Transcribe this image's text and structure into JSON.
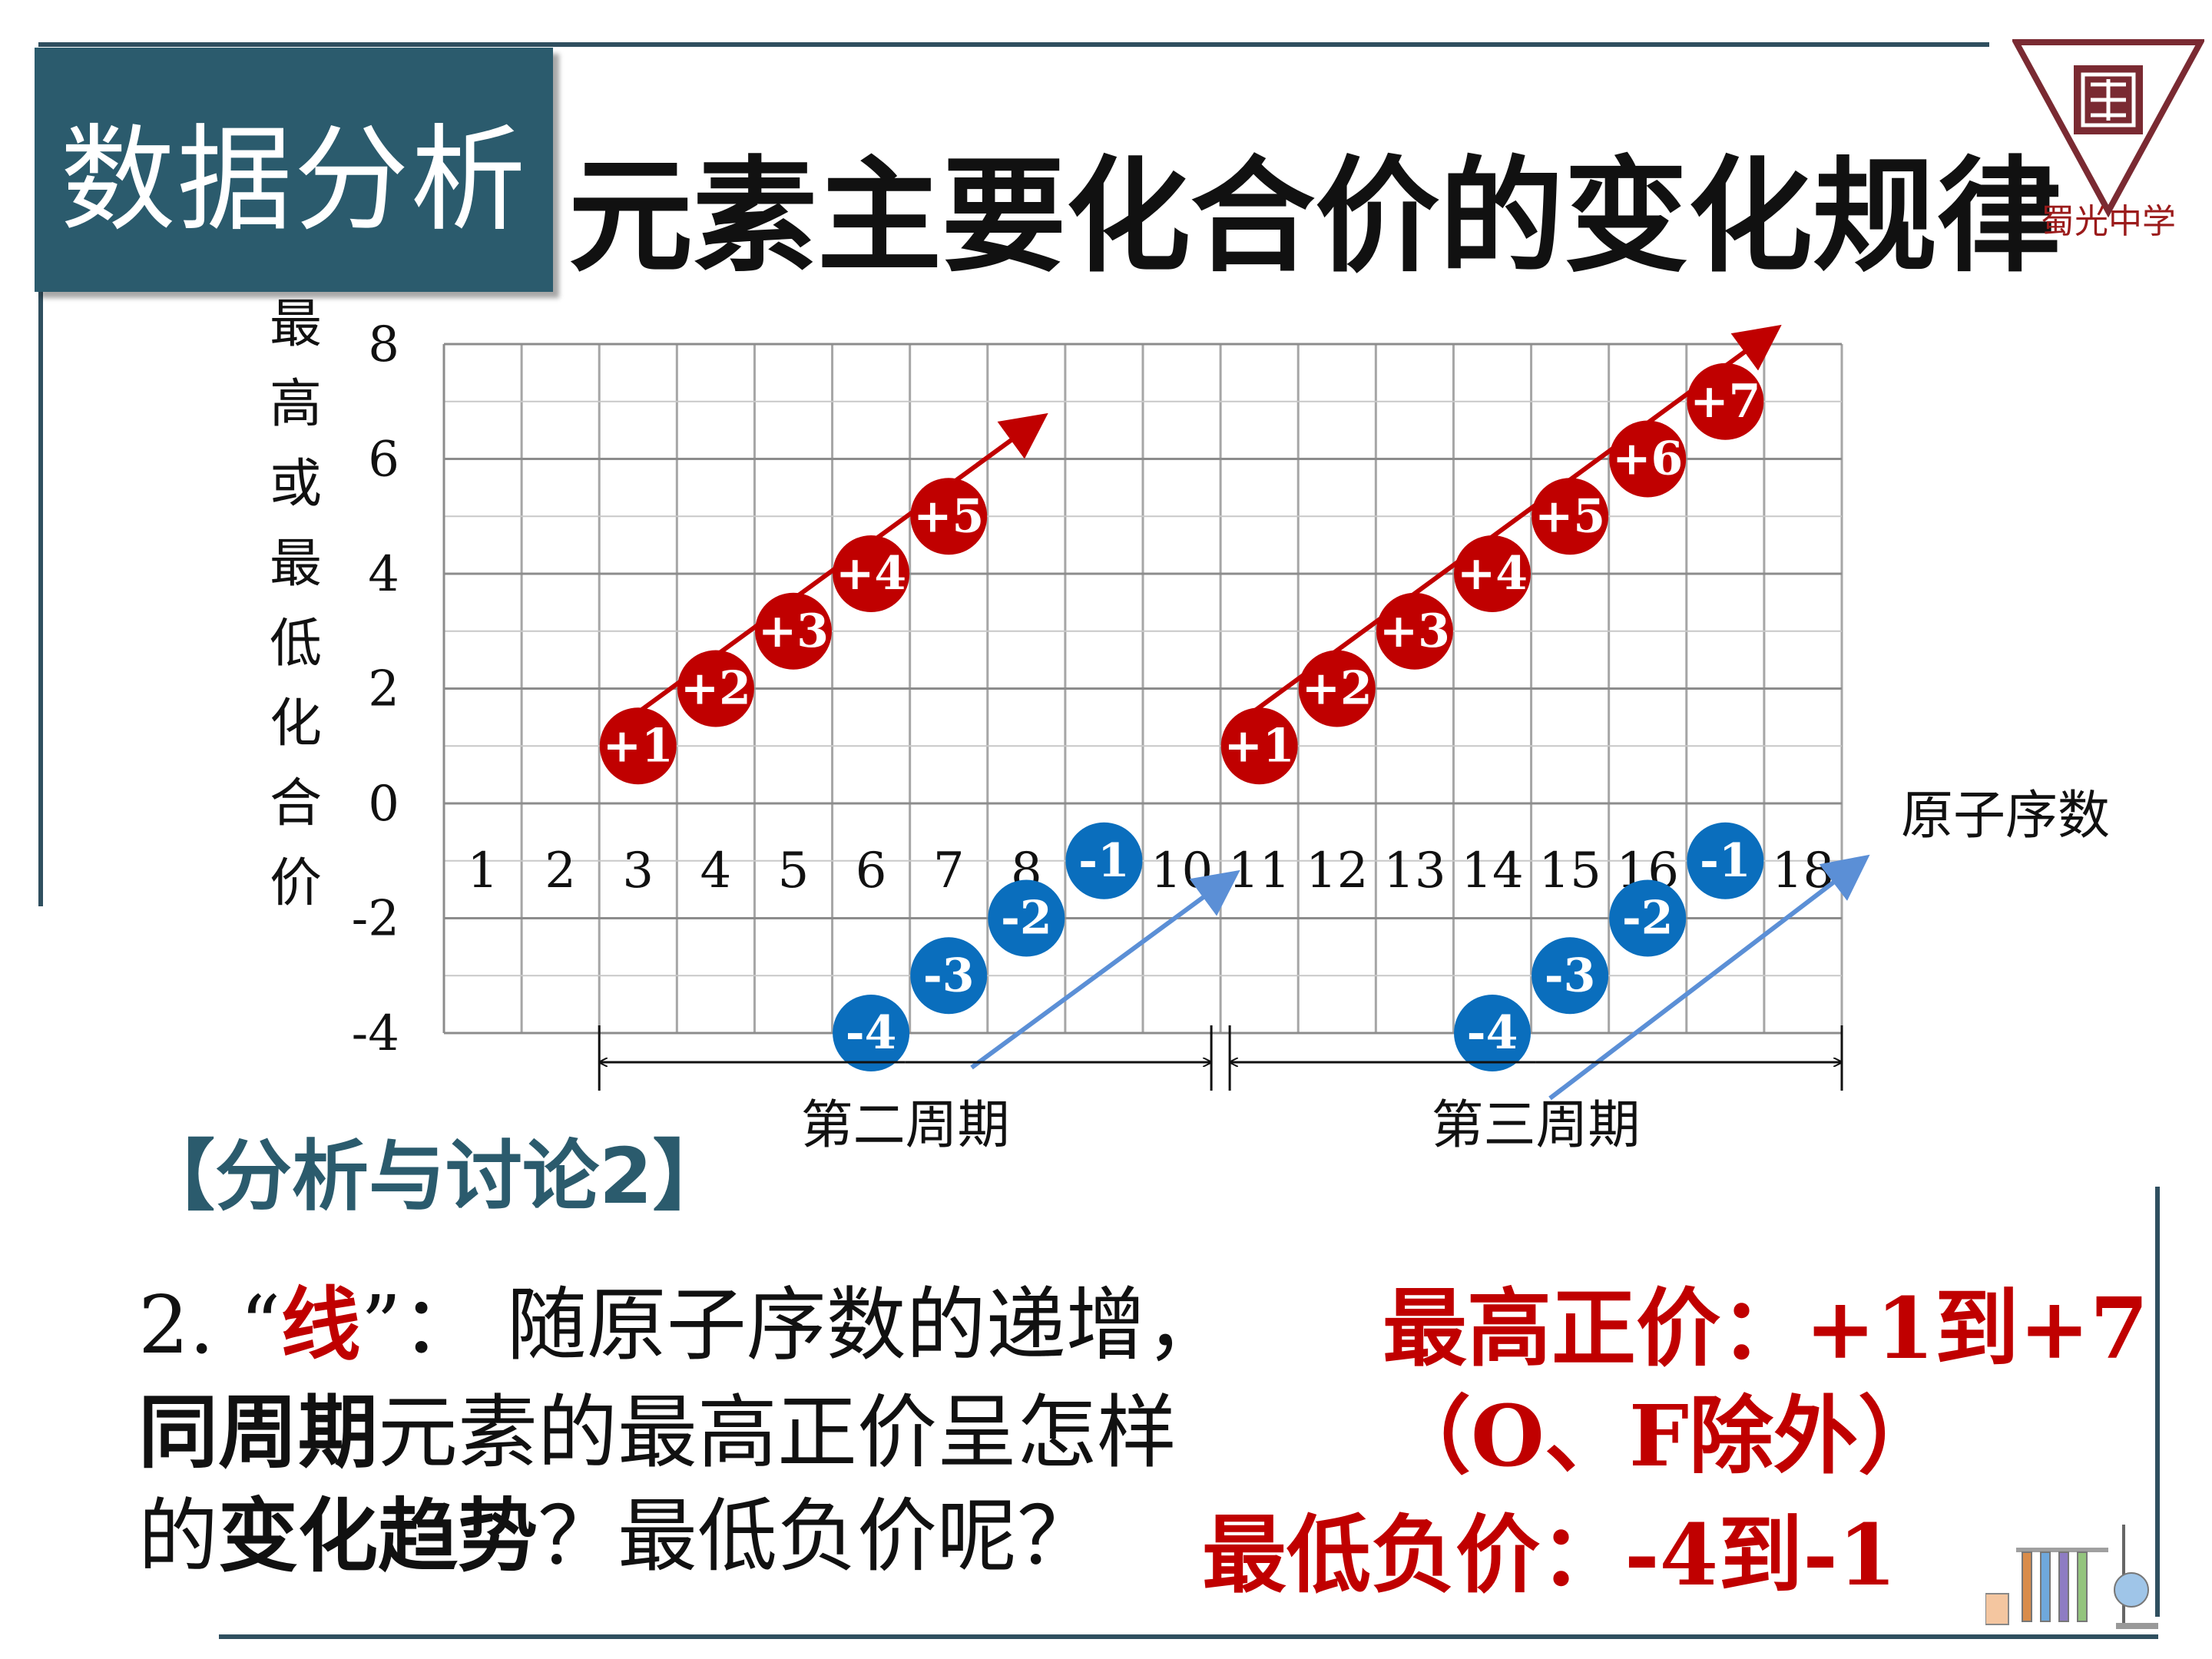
{
  "header": {
    "section_badge": "数据分析",
    "title": "元素主要化合价的变化规律",
    "school_logo_text": "蜀光中学"
  },
  "chart_data": {
    "type": "scatter",
    "ylabel": "最高或最低化合价",
    "xlabel": "原子序数",
    "xlim": [
      0,
      18
    ],
    "ylim": [
      -4,
      8
    ],
    "y_ticks": [
      "8",
      "6",
      "4",
      "2",
      "0",
      "-2",
      "-4"
    ],
    "x_ticks": [
      "1",
      "2",
      "3",
      "4",
      "5",
      "6",
      "7",
      "8",
      "9",
      "10",
      "11",
      "12",
      "13",
      "14",
      "15",
      "16",
      "17",
      "18"
    ],
    "series": [
      {
        "color": "#c00000",
        "points": [
          {
            "x": 3,
            "y": 1,
            "label": "+1"
          },
          {
            "x": 4,
            "y": 2,
            "label": "+2"
          },
          {
            "x": 5,
            "y": 3,
            "label": "+3"
          },
          {
            "x": 6,
            "y": 4,
            "label": "+4"
          },
          {
            "x": 7,
            "y": 5,
            "label": "+5"
          },
          {
            "x": 11,
            "y": 1,
            "label": "+1"
          },
          {
            "x": 12,
            "y": 2,
            "label": "+2"
          },
          {
            "x": 13,
            "y": 3,
            "label": "+3"
          },
          {
            "x": 14,
            "y": 4,
            "label": "+4"
          },
          {
            "x": 15,
            "y": 5,
            "label": "+5"
          },
          {
            "x": 16,
            "y": 6,
            "label": "+6"
          },
          {
            "x": 17,
            "y": 7,
            "label": "+7"
          }
        ]
      },
      {
        "color": "#0a6ebd",
        "points": [
          {
            "x": 6,
            "y": -4,
            "label": "-4"
          },
          {
            "x": 7,
            "y": -3,
            "label": "-3"
          },
          {
            "x": 8,
            "y": -2,
            "label": "-2"
          },
          {
            "x": 9,
            "y": -1,
            "label": "-1"
          },
          {
            "x": 14,
            "y": -4,
            "label": "-4"
          },
          {
            "x": 15,
            "y": -3,
            "label": "-3"
          },
          {
            "x": 16,
            "y": -2,
            "label": "-2"
          },
          {
            "x": 17,
            "y": -1,
            "label": "-1"
          }
        ]
      }
    ],
    "periods": [
      {
        "label": "第二周期",
        "from": 2,
        "to": 10
      },
      {
        "label": "第三周期",
        "from": 10,
        "to": 18
      }
    ],
    "grid": true
  },
  "discussion": {
    "heading": "【分析与讨论2】",
    "q1_prefix": "2. “",
    "q1_key": "线",
    "q1_rest": "”： 随原子序数的递增，",
    "q2_strong": "同周期",
    "q2_rest": "元素的最高正价呈怎样",
    "q3_a": "的",
    "q3_strong": "变化趋势",
    "q3_rest": "？最低负价呢？"
  },
  "answers": {
    "max": "最高正价：+1到+7",
    "except": "（O、F除外）",
    "min": "最低负价：-4到-1"
  },
  "colors": {
    "accent": "#2b5b6d",
    "positive": "#c00000",
    "negative": "#0a6ebd"
  }
}
